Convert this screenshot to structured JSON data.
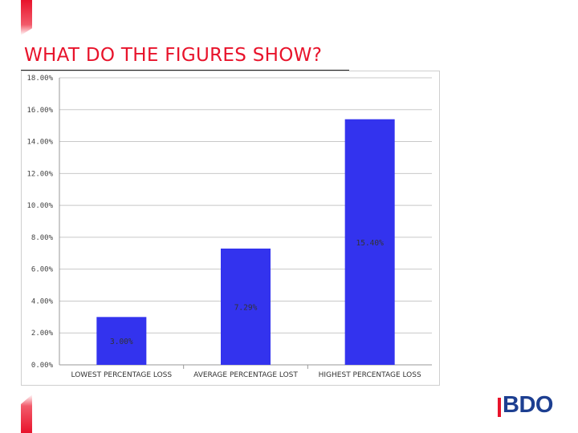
{
  "page": {
    "title": "WHAT DO THE FIGURES SHOW?"
  },
  "logo": {
    "text": "BDO",
    "brand_color": "#1d3f91",
    "accent_color": "#e8132b"
  },
  "chart_data": {
    "type": "bar",
    "categories": [
      "LOWEST PERCENTAGE LOSS",
      "AVERAGE PERCENTAGE LOST",
      "HIGHEST PERCENTAGE LOSS"
    ],
    "values": [
      3.0,
      7.29,
      15.4
    ],
    "data_labels": [
      "3.00%",
      "7.29%",
      "15.40%"
    ],
    "y_ticks": [
      "0.00%",
      "2.00%",
      "4.00%",
      "6.00%",
      "8.00%",
      "10.00%",
      "12.00%",
      "14.00%",
      "16.00%",
      "18.00%"
    ],
    "ylim": [
      0,
      18
    ],
    "grid": true,
    "bar_color": "#3333ee",
    "title": "",
    "xlabel": "",
    "ylabel": ""
  }
}
